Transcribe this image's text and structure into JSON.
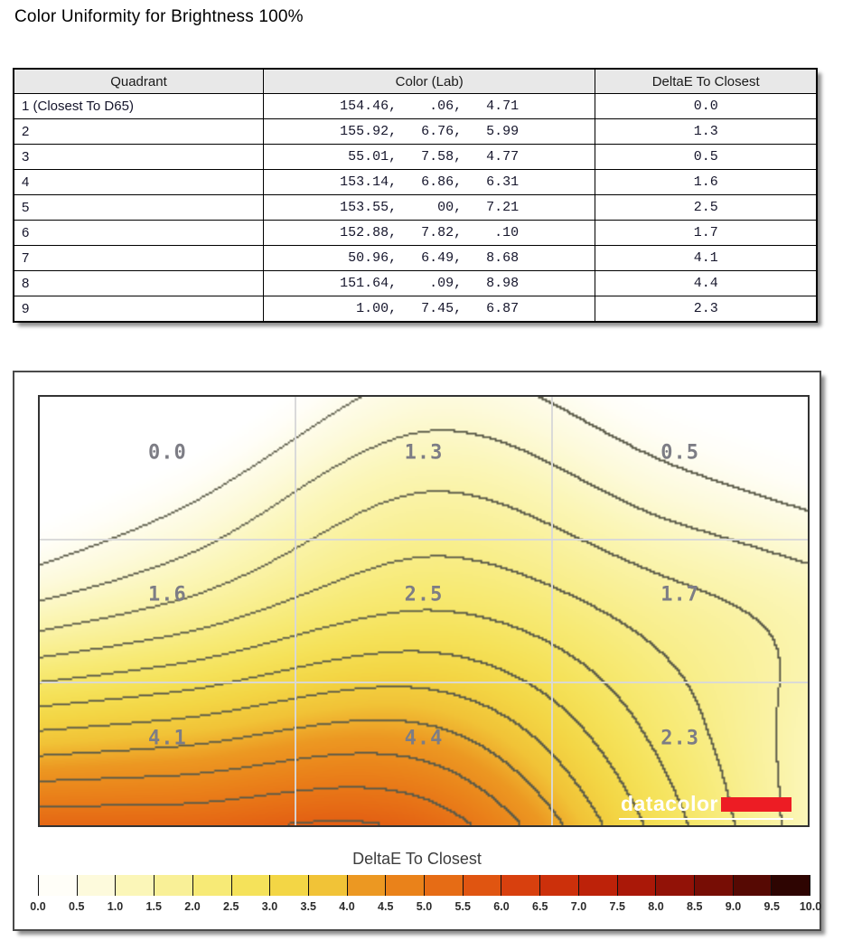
{
  "page": {
    "title": "Color Uniformity for Brightness 100%"
  },
  "table": {
    "columns": [
      "Quadrant",
      "Color (Lab)",
      "DeltaE To Closest"
    ],
    "rows": [
      {
        "quadrant": "1 (Closest To D65)",
        "lab": "154.46,    .06,   4.71",
        "deltae": "0.0"
      },
      {
        "quadrant": "2",
        "lab": "155.92,   6.76,   5.99",
        "deltae": "1.3"
      },
      {
        "quadrant": "3",
        "lab": " 55.01,   7.58,   4.77",
        "deltae": "0.5"
      },
      {
        "quadrant": "4",
        "lab": "153.14,   6.86,   6.31",
        "deltae": "1.6"
      },
      {
        "quadrant": "5",
        "lab": "153.55,     00,   7.21",
        "deltae": "2.5"
      },
      {
        "quadrant": "6",
        "lab": "152.88,   7.82,    .10",
        "deltae": "1.7"
      },
      {
        "quadrant": "7",
        "lab": " 50.96,   6.49,   8.68",
        "deltae": "4.1"
      },
      {
        "quadrant": "8",
        "lab": "151.64,    .09,   8.98",
        "deltae": "4.4"
      },
      {
        "quadrant": "9",
        "lab": "  1.00,   7.45,   6.87",
        "deltae": "2.3"
      }
    ]
  },
  "chart_data": {
    "type": "heatmap",
    "subtype": "contour",
    "title": "Color Uniformity for Brightness 100%",
    "categories_x": [
      "left",
      "center",
      "right"
    ],
    "categories_y": [
      "top",
      "middle",
      "bottom"
    ],
    "grid_values": [
      [
        0.0,
        1.3,
        0.5
      ],
      [
        1.6,
        2.5,
        1.7
      ],
      [
        4.1,
        4.4,
        2.3
      ]
    ],
    "quadrant_labels": [
      "0.0",
      "1.3",
      "0.5",
      "1.6",
      "2.5",
      "1.7",
      "4.1",
      "4.4",
      "2.3"
    ],
    "contour_interval": 0.5,
    "value_range": [
      0,
      10
    ],
    "grid_lines": true,
    "scale": {
      "min": 0,
      "max": 10,
      "step": 0.5,
      "title": "DeltaE To Closest",
      "tick_labels": [
        "0.0",
        "0.5",
        "1.0",
        "1.5",
        "2.0",
        "2.5",
        "3.0",
        "3.5",
        "4.0",
        "4.5",
        "5.0",
        "5.5",
        "6.0",
        "6.5",
        "7.0",
        "7.5",
        "8.0",
        "8.5",
        "9.0",
        "9.5",
        "10.0"
      ]
    },
    "legend_colors": [
      "#fffef8",
      "#fdfadc",
      "#fbf6b8",
      "#f9f097",
      "#f7ea76",
      "#f5e25a",
      "#f3d645",
      "#f1c337",
      "#ec9822",
      "#ea821a",
      "#e66c15",
      "#e05511",
      "#d8400e",
      "#cc300b",
      "#bd2209",
      "#aa1808",
      "#921207",
      "#770d05",
      "#560903",
      "#2e0502"
    ],
    "colormap": [
      [
        0,
        "#ffffff"
      ],
      [
        0.25,
        "#fffef8"
      ],
      [
        0.75,
        "#fdfadc"
      ],
      [
        1.25,
        "#fbf6b8"
      ],
      [
        1.75,
        "#f9f097"
      ],
      [
        2.25,
        "#f7ea76"
      ],
      [
        2.75,
        "#f5e25a"
      ],
      [
        3.25,
        "#f3d645"
      ],
      [
        3.75,
        "#f1c337"
      ],
      [
        4.25,
        "#ec9822"
      ],
      [
        4.75,
        "#ea821a"
      ],
      [
        5.25,
        "#e66c15"
      ],
      [
        5.75,
        "#e05511"
      ],
      [
        6.25,
        "#d8400e"
      ],
      [
        6.75,
        "#cc300b"
      ],
      [
        7.25,
        "#bd2209"
      ],
      [
        7.75,
        "#aa1808"
      ],
      [
        8.25,
        "#921207"
      ],
      [
        8.75,
        "#770d05"
      ],
      [
        9.25,
        "#560903"
      ],
      [
        9.75,
        "#2e0502"
      ],
      [
        10,
        "#1a0301"
      ]
    ],
    "logo": {
      "text": "datacolor",
      "accent_color": "#ed1c24"
    }
  },
  "colors": {
    "contour_line": "#5a5a48",
    "plot_grid_line": "#d8d8d8",
    "quadrant_label": "#7d7d85",
    "table_header_bg": "#e8e8e8"
  }
}
